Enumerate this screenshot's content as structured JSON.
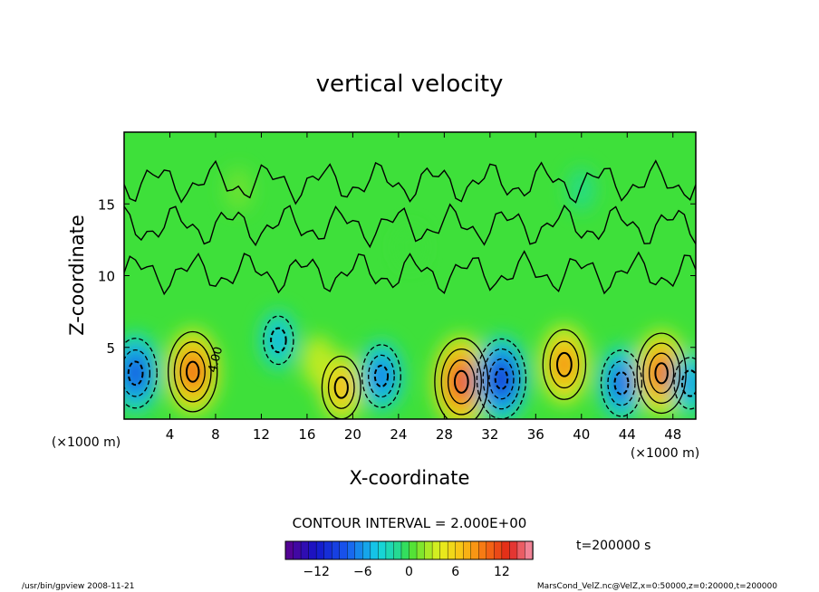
{
  "chart_data": {
    "type": "heatmap",
    "title": "vertical velocity",
    "xlabel": "X-coordinate",
    "ylabel": "Z-coordinate",
    "x_unit_left": "(×1000 m)",
    "x_unit_right": "(×1000 m)",
    "xlim": [
      0,
      50
    ],
    "ylim": [
      0,
      20
    ],
    "x_ticks": [
      "4",
      "8",
      "12",
      "16",
      "20",
      "24",
      "28",
      "32",
      "36",
      "40",
      "44",
      "48"
    ],
    "y_ticks": [
      "5",
      "10",
      "15"
    ],
    "contour_interval_label": "CONTOUR INTERVAL = 2.000E+00",
    "contour_annotation": "4.00",
    "time_label": "t=200000 s",
    "colorbar": {
      "range": [
        -16,
        16
      ],
      "ticks": [
        "−12",
        "−6",
        "0",
        "6",
        "12"
      ],
      "tick_values": [
        -12,
        -6,
        0,
        6,
        12
      ]
    },
    "cells": [
      {
        "x": 1.0,
        "z": 3.2,
        "value": -10
      },
      {
        "x": 6.0,
        "z": 3.3,
        "value": 12
      },
      {
        "x": 13.5,
        "z": 5.5,
        "value": -5
      },
      {
        "x": 17.0,
        "z": 4.0,
        "value": 3
      },
      {
        "x": 19.0,
        "z": 2.2,
        "value": 8
      },
      {
        "x": 22.5,
        "z": 3.0,
        "value": -8
      },
      {
        "x": 29.5,
        "z": 2.6,
        "value": 14
      },
      {
        "x": 33.0,
        "z": 2.8,
        "value": -12
      },
      {
        "x": 38.5,
        "z": 3.8,
        "value": 10
      },
      {
        "x": 43.5,
        "z": 2.5,
        "value": -9
      },
      {
        "x": 47.0,
        "z": 3.2,
        "value": 12
      },
      {
        "x": 49.5,
        "z": 2.5,
        "value": -6
      },
      {
        "x": 25.0,
        "z": 12.0,
        "value": 0
      },
      {
        "x": 10.0,
        "z": 16.0,
        "value": 1
      },
      {
        "x": 40.0,
        "z": 16.0,
        "value": -1
      }
    ],
    "colors": {
      "background_field": "#3ee03a",
      "strong_positive": "#e0221c",
      "strong_negative": "#1a35d8"
    }
  },
  "footer": {
    "left": "/usr/bin/gpview  2008-11-21",
    "right": "MarsCond_VelZ.nc@VelZ,x=0:50000,z=0:20000,t=200000"
  }
}
